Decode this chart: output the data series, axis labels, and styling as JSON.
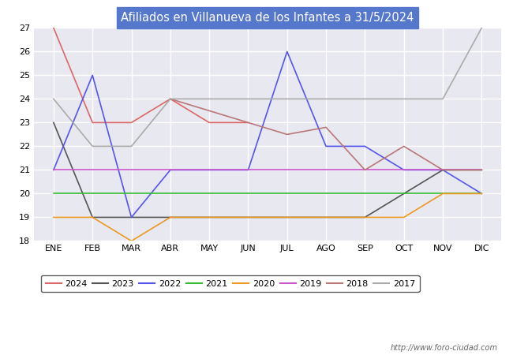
{
  "title": "Afiliados en Villanueva de los Infantes a 31/5/2024",
  "title_bg": "#5577cc",
  "title_color": "white",
  "ylim": [
    18.0,
    27.0
  ],
  "yticks": [
    18.0,
    19.0,
    20.0,
    21.0,
    22.0,
    23.0,
    24.0,
    25.0,
    26.0,
    27.0
  ],
  "months": [
    "ENE",
    "FEB",
    "MAR",
    "ABR",
    "MAY",
    "JUN",
    "JUL",
    "AGO",
    "SEP",
    "OCT",
    "NOV",
    "DIC"
  ],
  "series": {
    "2024": {
      "color": "#dd6666",
      "data": [
        27.0,
        23.0,
        23.0,
        24.0,
        23.0,
        23.0,
        null,
        null,
        null,
        null,
        null,
        null
      ]
    },
    "2023": {
      "color": "#555555",
      "data": [
        23.0,
        19.0,
        19.0,
        19.0,
        19.0,
        19.0,
        19.0,
        19.0,
        19.0,
        20.0,
        21.0,
        21.0
      ]
    },
    "2022": {
      "color": "#5555ee",
      "data": [
        21.0,
        25.0,
        19.0,
        21.0,
        21.0,
        21.0,
        26.0,
        22.0,
        22.0,
        21.0,
        21.0,
        20.0
      ]
    },
    "2021": {
      "color": "#33bb33",
      "data": [
        20.0,
        20.0,
        20.0,
        20.0,
        20.0,
        20.0,
        20.0,
        20.0,
        20.0,
        20.0,
        20.0,
        20.0
      ]
    },
    "2020": {
      "color": "#ee9922",
      "data": [
        19.0,
        19.0,
        18.0,
        19.0,
        19.0,
        19.0,
        19.0,
        19.0,
        19.0,
        19.0,
        20.0,
        20.0
      ]
    },
    "2019": {
      "color": "#cc55cc",
      "data": [
        21.0,
        21.0,
        21.0,
        21.0,
        21.0,
        21.0,
        21.0,
        21.0,
        21.0,
        21.0,
        21.0,
        21.0
      ]
    },
    "2018": {
      "color": "#bb7777",
      "data": [
        null,
        null,
        null,
        24.0,
        23.5,
        23.0,
        22.5,
        22.8,
        21.0,
        22.0,
        21.0,
        21.0
      ]
    },
    "2017": {
      "color": "#aaaaaa",
      "data": [
        24.0,
        22.0,
        22.0,
        24.0,
        24.0,
        24.0,
        24.0,
        24.0,
        24.0,
        24.0,
        24.0,
        27.0
      ]
    }
  },
  "watermark": "http://www.foro-ciudad.com",
  "plot_bg": "#e8e8f0",
  "grid_color": "white",
  "legend_years": [
    "2024",
    "2023",
    "2022",
    "2021",
    "2020",
    "2019",
    "2018",
    "2017"
  ]
}
